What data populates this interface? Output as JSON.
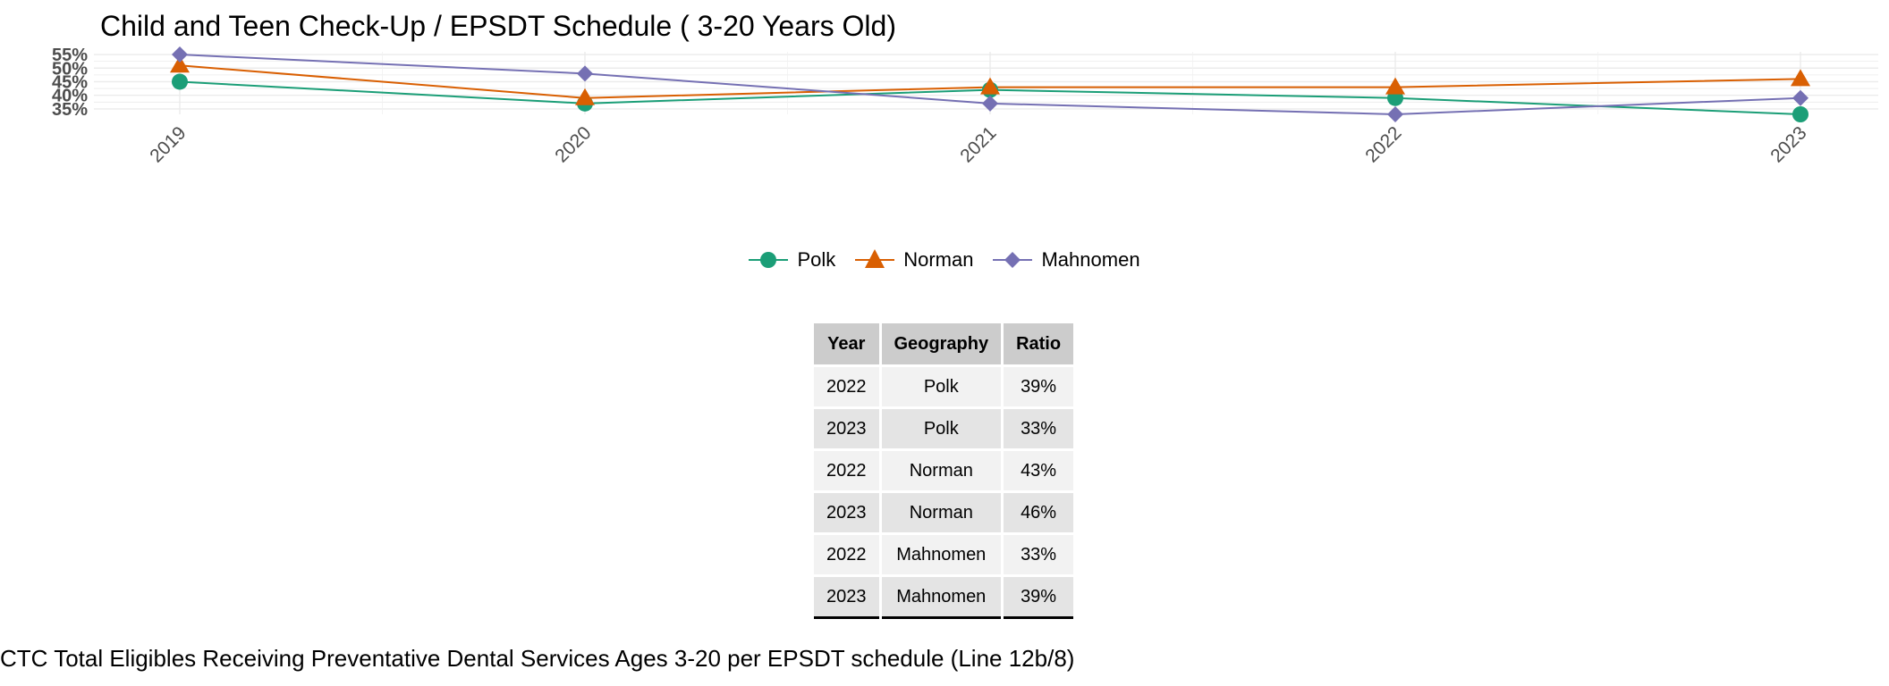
{
  "chart_data": {
    "type": "line",
    "title": "Child and Teen Check-Up / EPSDT Schedule ( 3-20  Years Old)",
    "xlabel": "",
    "ylabel": "",
    "categories": [
      "2019",
      "2020",
      "2021",
      "2022",
      "2023"
    ],
    "y_ticks": [
      "35%",
      "40%",
      "45%",
      "50%",
      "55%"
    ],
    "ylim": [
      33,
      56
    ],
    "grid": true,
    "legend_position": "bottom",
    "series": [
      {
        "name": "Polk",
        "values": [
          45,
          37,
          42,
          39,
          33
        ],
        "color": "#1b9e77",
        "marker": "circle"
      },
      {
        "name": "Norman",
        "values": [
          51,
          39,
          43,
          43,
          46
        ],
        "color": "#d95f02",
        "marker": "triangle"
      },
      {
        "name": "Mahnomen",
        "values": [
          55,
          48,
          37,
          33,
          39
        ],
        "color": "#7570b3",
        "marker": "diamond"
      }
    ]
  },
  "table": {
    "headers": [
      "Year",
      "Geography",
      "Ratio"
    ],
    "rows": [
      [
        "2022",
        "Polk",
        "39%"
      ],
      [
        "2023",
        "Polk",
        "33%"
      ],
      [
        "2022",
        "Norman",
        "43%"
      ],
      [
        "2023",
        "Norman",
        "46%"
      ],
      [
        "2022",
        "Mahnomen",
        "33%"
      ],
      [
        "2023",
        "Mahnomen",
        "39%"
      ]
    ]
  },
  "caption": "CTC Total Eligibles Receiving Preventative Dental Services Ages 3-20 per EPSDT schedule (Line 12b/8)"
}
